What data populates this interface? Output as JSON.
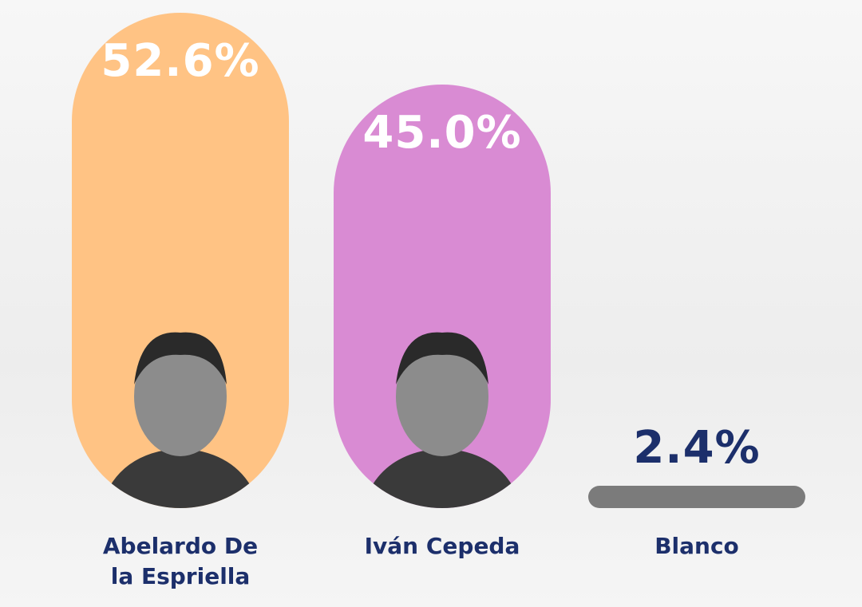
{
  "chart_data": {
    "type": "bar",
    "categories": [
      "Abelardo De la Espriella",
      "Iván Cepeda",
      "Blanco"
    ],
    "values": [
      52.6,
      45.0,
      2.4
    ],
    "value_labels": [
      "52.6%",
      "45.0%",
      "2.4%"
    ],
    "colors": [
      "#ffc384",
      "#d98bd3",
      "#7b7b7b"
    ]
  }
}
